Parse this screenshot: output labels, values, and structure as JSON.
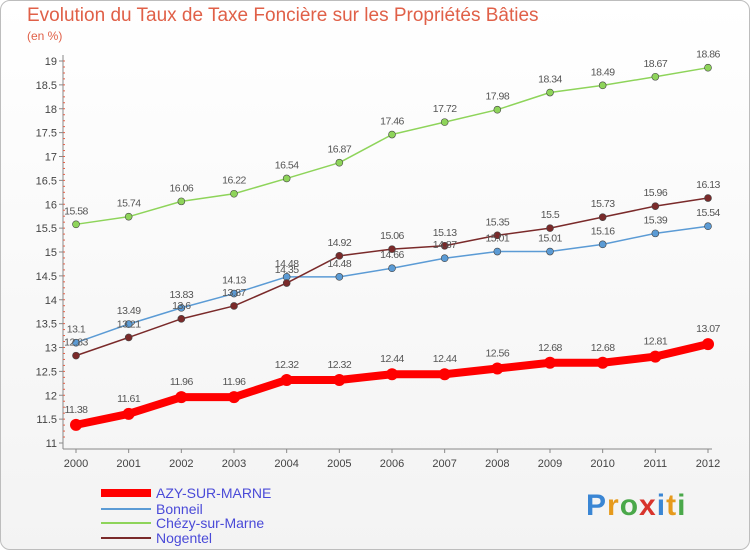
{
  "chart_data": {
    "type": "line",
    "title": "Evolution du Taux de Taxe Foncière sur les Propriétés Bâties",
    "subtitle": "(en %)",
    "x": [
      "2000",
      "2001",
      "2002",
      "2003",
      "2004",
      "2005",
      "2006",
      "2007",
      "2008",
      "2009",
      "2010",
      "2011",
      "2012"
    ],
    "ylim": [
      11,
      19
    ],
    "yticks": [
      "11",
      "11.5",
      "12",
      "12.5",
      "13",
      "13.5",
      "14",
      "14.5",
      "15",
      "15.5",
      "16",
      "16.5",
      "17",
      "17.5",
      "18",
      "18.5",
      "19"
    ],
    "grid": false,
    "legend_position": "bottom-left",
    "series": [
      {
        "name": "AZY-SUR-MARNE",
        "color": "#ff0000",
        "values": [
          11.38,
          11.61,
          11.96,
          11.96,
          12.32,
          12.32,
          12.44,
          12.44,
          12.56,
          12.68,
          12.68,
          12.81,
          13.07
        ]
      },
      {
        "name": "Bonneil",
        "color": "#5b9bd5",
        "values": [
          13.1,
          13.49,
          13.83,
          14.13,
          14.48,
          14.48,
          14.66,
          14.87,
          15.01,
          15.01,
          15.16,
          15.39,
          15.54
        ]
      },
      {
        "name": "Chézy-sur-Marne",
        "color": "#8ed45a",
        "values": [
          15.58,
          15.74,
          16.06,
          16.22,
          16.54,
          16.87,
          17.46,
          17.72,
          17.98,
          18.34,
          18.49,
          18.67,
          18.86
        ]
      },
      {
        "name": "Nogentel",
        "color": "#7a2a2a",
        "values": [
          12.83,
          13.21,
          13.6,
          13.87,
          14.35,
          14.92,
          15.06,
          15.13,
          15.35,
          15.5,
          15.73,
          15.96,
          16.13
        ]
      }
    ]
  },
  "logo": {
    "text": "Proxiti"
  }
}
